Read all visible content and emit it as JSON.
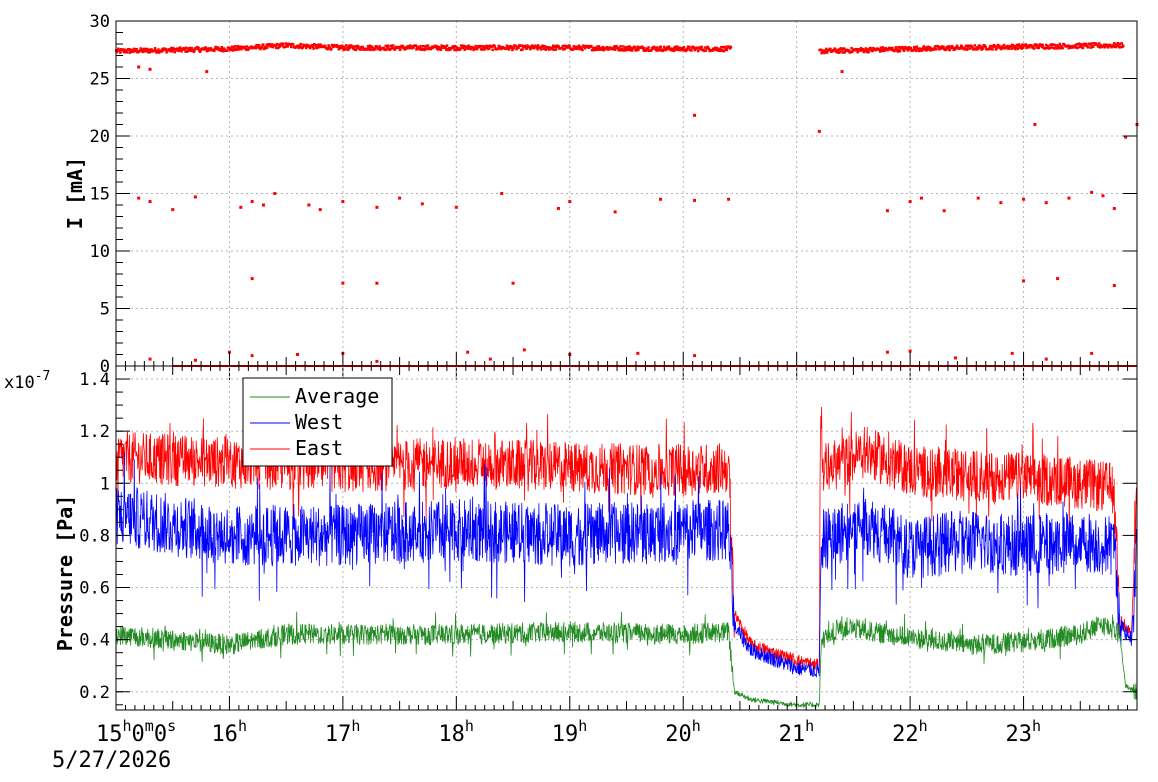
{
  "chart_data": [
    {
      "type": "scatter",
      "title": "",
      "ylabel": "I [mA]",
      "ylim": [
        0,
        30
      ],
      "yticks": [
        "0",
        "5",
        "10",
        "15",
        "20",
        "25",
        "30"
      ],
      "xlim": [
        15.0,
        24.0
      ],
      "grid": true,
      "series": [
        {
          "color": "#ff0000",
          "baseline": [
            [
              15.0,
              27.4
            ],
            [
              16.0,
              27.6
            ],
            [
              16.5,
              27.9
            ],
            [
              17.0,
              27.7
            ],
            [
              18.0,
              27.7
            ],
            [
              19.0,
              27.7
            ],
            [
              20.0,
              27.6
            ],
            [
              20.4,
              27.6
            ]
          ],
          "baseline2": [
            [
              21.2,
              27.4
            ],
            [
              22.0,
              27.6
            ],
            [
              23.0,
              27.8
            ],
            [
              23.8,
              27.9
            ]
          ],
          "outliers": [
            [
              15.2,
              26.0
            ],
            [
              15.3,
              25.8
            ],
            [
              15.8,
              25.6
            ],
            [
              15.2,
              14.6
            ],
            [
              15.3,
              14.3
            ],
            [
              15.5,
              13.6
            ],
            [
              15.7,
              14.7
            ],
            [
              16.1,
              13.8
            ],
            [
              16.2,
              14.3
            ],
            [
              16.3,
              14.0
            ],
            [
              16.4,
              15.0
            ],
            [
              16.7,
              14.0
            ],
            [
              16.8,
              13.6
            ],
            [
              17.0,
              14.3
            ],
            [
              17.3,
              13.8
            ],
            [
              17.5,
              14.6
            ],
            [
              17.7,
              14.1
            ],
            [
              18.0,
              13.8
            ],
            [
              18.4,
              15.0
            ],
            [
              18.9,
              13.7
            ],
            [
              19.0,
              14.3
            ],
            [
              19.4,
              13.4
            ],
            [
              19.8,
              14.5
            ],
            [
              20.1,
              14.4
            ],
            [
              20.4,
              14.5
            ],
            [
              16.2,
              7.6
            ],
            [
              17.0,
              7.2
            ],
            [
              17.3,
              7.2
            ],
            [
              18.5,
              7.2
            ],
            [
              20.1,
              21.8
            ],
            [
              21.2,
              20.4
            ],
            [
              21.4,
              25.6
            ],
            [
              21.8,
              13.5
            ],
            [
              22.0,
              14.3
            ],
            [
              22.1,
              14.6
            ],
            [
              22.3,
              13.5
            ],
            [
              22.6,
              14.6
            ],
            [
              22.8,
              14.2
            ],
            [
              23.0,
              14.5
            ],
            [
              23.2,
              14.2
            ],
            [
              23.4,
              14.6
            ],
            [
              23.6,
              15.1
            ],
            [
              23.7,
              14.8
            ],
            [
              23.8,
              13.7
            ],
            [
              23.0,
              7.4
            ],
            [
              23.3,
              7.6
            ],
            [
              23.8,
              7.0
            ],
            [
              23.1,
              21.0
            ],
            [
              23.9,
              19.9
            ],
            [
              24.0,
              21.0
            ],
            [
              15.3,
              0.6
            ],
            [
              15.7,
              0.5
            ],
            [
              16.0,
              1.2
            ],
            [
              16.2,
              0.9
            ],
            [
              16.6,
              1.0
            ],
            [
              17.0,
              1.1
            ],
            [
              17.3,
              0.4
            ],
            [
              18.1,
              1.2
            ],
            [
              18.3,
              0.6
            ],
            [
              18.6,
              1.4
            ],
            [
              19.0,
              1.0
            ],
            [
              19.6,
              1.1
            ],
            [
              20.1,
              0.9
            ],
            [
              21.8,
              1.2
            ],
            [
              22.0,
              1.3
            ],
            [
              22.4,
              0.7
            ],
            [
              22.9,
              1.1
            ],
            [
              23.2,
              0.6
            ],
            [
              23.6,
              1.1
            ]
          ]
        }
      ]
    },
    {
      "type": "line",
      "title": "",
      "ylabel": "Pressure [Pa]",
      "exponent_prefix": "x10",
      "exponent": "-7",
      "ylim": [
        0.13,
        1.45
      ],
      "yticks": [
        "0.2",
        "0.4",
        "0.6",
        "0.8",
        "1",
        "1.2",
        "1.4"
      ],
      "xlabel": "",
      "xlim": [
        15.0,
        24.0
      ],
      "xticks": [
        {
          "h": "15",
          "sup1": "h",
          "mid": "0",
          "sup2": "m",
          "mid2": "0",
          "sup3": "s"
        },
        {
          "h": "16",
          "sup1": "h"
        },
        {
          "h": "17",
          "sup1": "h"
        },
        {
          "h": "18",
          "sup1": "h"
        },
        {
          "h": "19",
          "sup1": "h"
        },
        {
          "h": "20",
          "sup1": "h"
        },
        {
          "h": "21",
          "sup1": "h"
        },
        {
          "h": "22",
          "sup1": "h"
        },
        {
          "h": "23",
          "sup1": "h"
        }
      ],
      "date": "5/27/2026",
      "grid": true,
      "legend_position": "top-left",
      "series": [
        {
          "name": "Average",
          "color": "#228b22",
          "points": [
            [
              15.0,
              0.42
            ],
            [
              16.0,
              0.38
            ],
            [
              16.5,
              0.42
            ],
            [
              17.0,
              0.42
            ],
            [
              18.0,
              0.42
            ],
            [
              19.0,
              0.43
            ],
            [
              20.0,
              0.42
            ],
            [
              20.4,
              0.43
            ],
            [
              20.45,
              0.2
            ],
            [
              20.6,
              0.17
            ],
            [
              21.0,
              0.15
            ],
            [
              21.2,
              0.15
            ],
            [
              21.22,
              0.4
            ],
            [
              21.4,
              0.45
            ],
            [
              21.8,
              0.42
            ],
            [
              22.5,
              0.38
            ],
            [
              23.0,
              0.39
            ],
            [
              23.5,
              0.42
            ],
            [
              23.7,
              0.46
            ],
            [
              23.85,
              0.42
            ],
            [
              23.9,
              0.22
            ],
            [
              24.0,
              0.2
            ]
          ],
          "noise": 0.04
        },
        {
          "name": "West",
          "color": "#0000ff",
          "points": [
            [
              15.0,
              0.88
            ],
            [
              16.0,
              0.8
            ],
            [
              17.0,
              0.8
            ],
            [
              18.0,
              0.82
            ],
            [
              19.0,
              0.8
            ],
            [
              20.0,
              0.82
            ],
            [
              20.4,
              0.82
            ],
            [
              20.45,
              0.45
            ],
            [
              20.6,
              0.36
            ],
            [
              21.0,
              0.29
            ],
            [
              21.2,
              0.28
            ],
            [
              21.22,
              0.78
            ],
            [
              21.6,
              0.85
            ],
            [
              22.0,
              0.75
            ],
            [
              22.5,
              0.78
            ],
            [
              23.0,
              0.76
            ],
            [
              23.5,
              0.78
            ],
            [
              23.8,
              0.76
            ],
            [
              23.85,
              0.46
            ],
            [
              23.95,
              0.4
            ],
            [
              24.0,
              0.75
            ]
          ],
          "noise": 0.12
        },
        {
          "name": "East",
          "color": "#ff0000",
          "points": [
            [
              15.0,
              1.1
            ],
            [
              16.0,
              1.08
            ],
            [
              17.0,
              1.06
            ],
            [
              18.0,
              1.08
            ],
            [
              19.0,
              1.06
            ],
            [
              20.0,
              1.05
            ],
            [
              20.4,
              1.06
            ],
            [
              20.45,
              0.5
            ],
            [
              20.6,
              0.38
            ],
            [
              21.0,
              0.32
            ],
            [
              21.2,
              0.3
            ],
            [
              21.21,
              1.38
            ],
            [
              21.23,
              1.05
            ],
            [
              21.6,
              1.12
            ],
            [
              22.0,
              1.05
            ],
            [
              22.5,
              1.03
            ],
            [
              23.0,
              1.02
            ],
            [
              23.5,
              1.0
            ],
            [
              23.8,
              0.98
            ],
            [
              23.85,
              0.48
            ],
            [
              23.95,
              0.42
            ],
            [
              24.0,
              0.95
            ]
          ],
          "noise": 0.1
        }
      ]
    }
  ]
}
